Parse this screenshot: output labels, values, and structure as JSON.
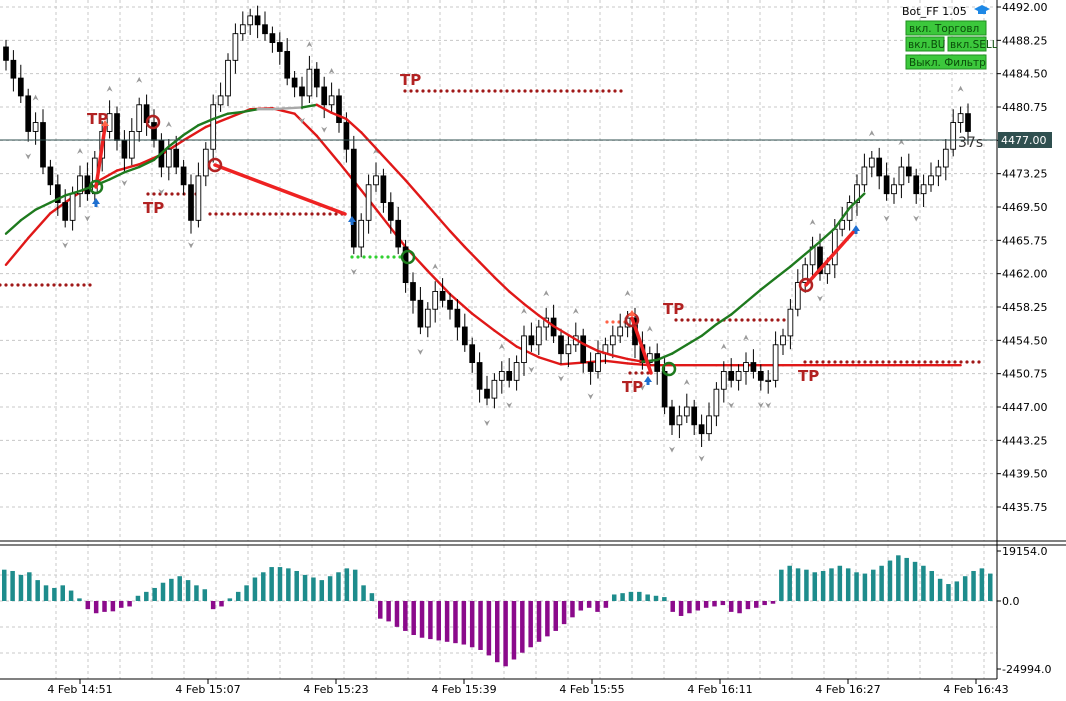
{
  "header": {
    "bot_label": "Bot_FF 1.05",
    "buttons": [
      {
        "label": "вкл. Торговл"
      },
      {
        "label": "вкл.BU"
      },
      {
        "label": "вкл.SELL"
      },
      {
        "label": "Выкл. Фильтр"
      }
    ],
    "timer": "37s",
    "current_price_label": "4477.00",
    "colors": {
      "panel_button_bg": "#3cc83c",
      "panel_button_text": "#0a4d0a",
      "price_tag_bg": "#2f4f4f"
    }
  },
  "signals": {
    "tp_labels": [
      "TP",
      "TP",
      "TP",
      "TP",
      "TP",
      "TP"
    ]
  },
  "chart_data": [
    {
      "type": "candlestick",
      "title": "",
      "ylim": [
        4432.0,
        4493.0
      ],
      "current_price": 4477.0,
      "yticks": [
        "4492.00",
        "4488.25",
        "4484.50",
        "4480.75",
        "4477.00",
        "4473.25",
        "4469.50",
        "4465.75",
        "4462.00",
        "4458.25",
        "4454.50",
        "4450.75",
        "4447.00",
        "4443.25",
        "4439.50",
        "4435.75"
      ],
      "x_labels": [
        "4 Feb 14:51",
        "4 Feb 15:07",
        "4 Feb 15:23",
        "4 Feb 15:39",
        "4 Feb 15:55",
        "4 Feb 16:11",
        "4 Feb 16:27",
        "4 Feb 16:43"
      ],
      "closes": [
        4486.0,
        4484.0,
        4482.0,
        4478.0,
        4479.0,
        4474.0,
        4472.0,
        4470.0,
        4468.0,
        4471.0,
        4473.0,
        4471.0,
        4475.0,
        4478.0,
        4480.0,
        4477.0,
        4475.0,
        4478.0,
        4481.0,
        4479.0,
        4477.0,
        4474.0,
        4476.0,
        4474.0,
        4472.0,
        4468.0,
        4473.0,
        4476.0,
        4481.0,
        4482.0,
        4486.0,
        4489.0,
        4490.0,
        4491.0,
        4490.0,
        4489.0,
        4488.0,
        4487.0,
        4484.0,
        4483.0,
        4482.0,
        4485.0,
        4483.0,
        4481.0,
        4482.0,
        4479.0,
        4476.0,
        4465.0,
        4468.0,
        4472.0,
        4473.0,
        4470.0,
        4468.0,
        4465.0,
        4461.0,
        4459.0,
        4456.0,
        4458.0,
        4460.0,
        4459.0,
        4458.0,
        4456.0,
        4454.0,
        4452.0,
        4449.0,
        4448.0,
        4450.0,
        4451.0,
        4450.0,
        4452.0,
        4455.0,
        4454.0,
        4456.0,
        4457.0,
        4455.0,
        4453.0,
        4454.0,
        4455.0,
        4452.0,
        4451.0,
        4453.0,
        4454.0,
        4455.0,
        4456.0,
        4457.0,
        4454.0,
        4452.0,
        4453.0,
        4451.0,
        4447.0,
        4445.0,
        4446.0,
        4447.0,
        4445.0,
        4444.0,
        4446.0,
        4449.0,
        4451.0,
        4450.0,
        4451.0,
        4452.0,
        4451.0,
        4450.0,
        4450.0,
        4454.0,
        4455.0,
        4458.0,
        4461.0,
        4463.0,
        4465.0,
        4462.0,
        4463.0,
        4467.0,
        4468.0,
        4470.0,
        4472.0,
        4474.0,
        4475.0,
        4473.0,
        4471.0,
        4472.0,
        4474.0,
        4473.0,
        4471.0,
        4472.0,
        4473.0,
        4474.0,
        4476.0,
        4479.0,
        4480.0,
        4478.0
      ],
      "ma_fast": {
        "name": "",
        "start_index": 0,
        "step": 2,
        "values": [
          4466.5,
          4468.0,
          4469.2,
          4470.0,
          4470.8,
          4471.3,
          4471.9,
          4472.6,
          4473.4,
          4474.0,
          4474.8,
          4476.3,
          4477.6,
          4478.7,
          4479.4,
          4480.0,
          4480.2,
          4480.5,
          4480.5,
          4480.6,
          4480.7,
          4481.0,
          4480.1,
          4479.4,
          4477.9,
          4476.1,
          4474.3,
          4472.5,
          4470.6,
          4468.7,
          4466.8,
          4465.0,
          4463.3,
          4461.6,
          4460.0,
          4458.6,
          4457.3,
          4456.1,
          4455.1,
          4454.1,
          4453.3,
          4452.8,
          4452.4,
          4452.1,
          4452.3,
          4453.0,
          4454.0,
          4455.0,
          4456.3,
          4457.4,
          4458.8,
          4460.2,
          4461.5,
          4462.8,
          4464.2,
          4465.6,
          4467.1,
          4469.4,
          4471.0
        ]
      },
      "ma_slow": {
        "name": "",
        "start_index": 0,
        "step": 3,
        "values": [
          4463.0,
          4466.0,
          4468.8,
          4470.6,
          4472.2,
          4473.6,
          4474.3,
          4475.4,
          4477.0,
          4478.5,
          4479.5,
          4480.5,
          4480.6,
          4480.0,
          4477.5,
          4474.5,
          4471.4,
          4468.2,
          4465.0,
          4462.3,
          4459.7,
          4457.5,
          4455.6,
          4453.8,
          4452.6,
          4451.8,
          4452.0,
          4452.2,
          4451.9,
          4451.7,
          4451.7,
          4451.7,
          4451.7,
          4451.7,
          4451.7,
          4451.7,
          4451.7,
          4451.7,
          4451.7,
          4451.7,
          4451.7,
          4451.7,
          4451.7,
          4451.7
        ]
      },
      "sub_panel": {
        "type": "bar",
        "ylim": [
          -24994.0,
          19154.0
        ],
        "yticks": [
          "19154.0",
          "0.0",
          "-24994.0"
        ],
        "values": [
          12000,
          11500,
          10000,
          11000,
          8000,
          6000,
          5000,
          6000,
          4000,
          1000,
          -3000,
          -4500,
          -4000,
          -3800,
          -2500,
          -2000,
          2000,
          3500,
          5000,
          7000,
          8500,
          9500,
          8000,
          6000,
          4500,
          -3000,
          -2000,
          1000,
          3500,
          6000,
          9000,
          11000,
          13000,
          13000,
          12500,
          11500,
          10000,
          9000,
          8000,
          9500,
          11000,
          12500,
          12000,
          6000,
          3000,
          -6500,
          -7500,
          -9500,
          -11000,
          -12500,
          -13500,
          -14000,
          -14500,
          -15000,
          -15500,
          -16000,
          -17000,
          -18000,
          -20000,
          -22500,
          -24000,
          -21500,
          -19000,
          -17000,
          -15000,
          -13000,
          -11000,
          -8500,
          -6000,
          -3500,
          -2500,
          -4000,
          -2500,
          2500,
          3000,
          3500,
          3500,
          2500,
          2000,
          1500,
          -4000,
          -5500,
          -4500,
          -3500,
          -2500,
          -2000,
          -1500,
          -4000,
          -4500,
          -3000,
          -2500,
          -1500,
          -1000,
          12000,
          13500,
          12500,
          12000,
          11000,
          11500,
          12500,
          13500,
          12500,
          11000,
          10500,
          12000,
          13500,
          15500,
          17500,
          16500,
          15000,
          13500,
          11500,
          8500,
          6500,
          7500,
          9500,
          11500,
          12500,
          10500
        ]
      }
    }
  ]
}
